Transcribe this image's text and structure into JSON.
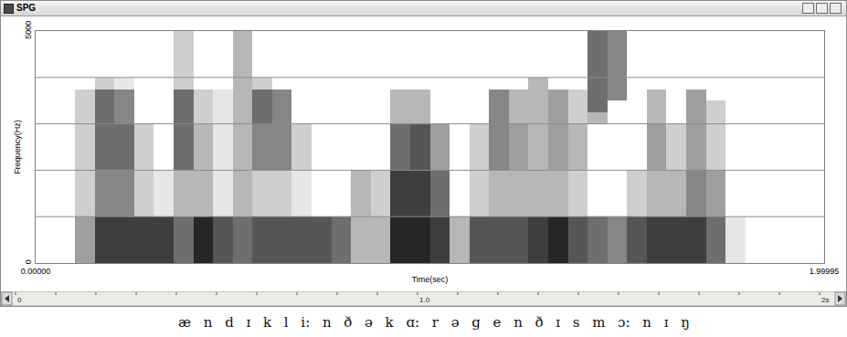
{
  "window": {
    "title": "SPG"
  },
  "chart_data": {
    "type": "heatmap",
    "x_label": "Time(sec)",
    "y_label": "Frequency(Hz)",
    "xlim": [
      0,
      1.99995
    ],
    "xticks": [
      {
        "value": 0,
        "label": "0.00000"
      },
      1.99995
    ],
    "ylim": [
      0,
      5000
    ],
    "yticks": [
      0,
      5000
    ],
    "grid": true,
    "grid_lines": [
      1000,
      2000,
      3000,
      4000
    ],
    "color": "#262626",
    "zlim": [
      0,
      9
    ],
    "x_bins": [
      0,
      0.05,
      0.1,
      0.15,
      0.2,
      0.25,
      0.3,
      0.35,
      0.4,
      0.45,
      0.5,
      0.55,
      0.6,
      0.65,
      0.7,
      0.75,
      0.8,
      0.85,
      0.9,
      0.95,
      1,
      1.05,
      1.1,
      1.15,
      1.2,
      1.25,
      1.3,
      1.35,
      1.4,
      1.45,
      1.5,
      1.55,
      1.6,
      1.65,
      1.7,
      1.75,
      1.8,
      1.85,
      1.9,
      1.95,
      2
    ],
    "y_bins": [
      0,
      250,
      500,
      750,
      1000,
      1250,
      1500,
      1750,
      2000,
      2250,
      2500,
      2750,
      3000,
      3250,
      3500,
      3750,
      4000,
      4250,
      4500,
      4750,
      5000
    ],
    "cells": [
      [
        0,
        0,
        4,
        8,
        8,
        8,
        8,
        6,
        9,
        7,
        6,
        7,
        7,
        7,
        7,
        6,
        3,
        3,
        9,
        9,
        8,
        3,
        7,
        7,
        7,
        8,
        9,
        7,
        6,
        5,
        7,
        8,
        8,
        8,
        6,
        1,
        0,
        0,
        0,
        0
      ],
      [
        0,
        0,
        4,
        8,
        8,
        8,
        8,
        6,
        9,
        7,
        6,
        7,
        7,
        7,
        7,
        6,
        3,
        3,
        9,
        9,
        8,
        3,
        7,
        7,
        7,
        8,
        9,
        7,
        6,
        5,
        7,
        8,
        8,
        8,
        6,
        1,
        0,
        0,
        0,
        0
      ],
      [
        0,
        0,
        4,
        8,
        8,
        8,
        8,
        6,
        9,
        7,
        6,
        7,
        7,
        7,
        7,
        6,
        3,
        3,
        9,
        9,
        8,
        3,
        7,
        7,
        7,
        8,
        9,
        7,
        6,
        5,
        7,
        8,
        8,
        8,
        6,
        1,
        0,
        0,
        0,
        0
      ],
      [
        0,
        0,
        4,
        8,
        8,
        8,
        8,
        6,
        9,
        7,
        6,
        7,
        7,
        7,
        7,
        6,
        3,
        3,
        9,
        9,
        8,
        3,
        7,
        7,
        7,
        8,
        9,
        7,
        6,
        5,
        7,
        8,
        8,
        8,
        6,
        1,
        0,
        0,
        0,
        0
      ],
      [
        0,
        0,
        2,
        5,
        5,
        2,
        1,
        3,
        3,
        1,
        3,
        2,
        2,
        1,
        0,
        0,
        3,
        2,
        8,
        8,
        6,
        0,
        2,
        3,
        3,
        3,
        3,
        2,
        0,
        0,
        2,
        3,
        3,
        5,
        4,
        0,
        0,
        0,
        0,
        0
      ],
      [
        0,
        0,
        2,
        5,
        5,
        2,
        1,
        3,
        3,
        1,
        3,
        2,
        2,
        1,
        0,
        0,
        3,
        2,
        8,
        8,
        6,
        0,
        2,
        3,
        3,
        3,
        3,
        2,
        0,
        0,
        2,
        3,
        3,
        5,
        4,
        0,
        0,
        0,
        0,
        0
      ],
      [
        0,
        0,
        2,
        5,
        5,
        2,
        1,
        3,
        3,
        1,
        3,
        2,
        2,
        1,
        0,
        0,
        3,
        2,
        8,
        8,
        6,
        0,
        2,
        3,
        3,
        3,
        3,
        2,
        0,
        0,
        2,
        3,
        3,
        5,
        4,
        0,
        0,
        0,
        0,
        0
      ],
      [
        0,
        0,
        2,
        5,
        5,
        2,
        1,
        3,
        3,
        1,
        3,
        2,
        2,
        1,
        0,
        0,
        3,
        2,
        8,
        8,
        6,
        0,
        2,
        3,
        3,
        3,
        3,
        2,
        0,
        0,
        2,
        3,
        3,
        5,
        4,
        0,
        0,
        0,
        0,
        0
      ],
      [
        0,
        0,
        2,
        6,
        6,
        2,
        0,
        6,
        3,
        1,
        3,
        5,
        5,
        2,
        0,
        0,
        0,
        0,
        6,
        7,
        4,
        0,
        2,
        5,
        4,
        3,
        4,
        3,
        0,
        0,
        0,
        4,
        2,
        4,
        2,
        0,
        0,
        0,
        0,
        0
      ],
      [
        0,
        0,
        2,
        6,
        6,
        2,
        0,
        6,
        3,
        1,
        3,
        5,
        5,
        2,
        0,
        0,
        0,
        0,
        6,
        7,
        4,
        0,
        2,
        5,
        4,
        3,
        4,
        3,
        0,
        0,
        0,
        4,
        2,
        4,
        2,
        0,
        0,
        0,
        0,
        0
      ],
      [
        0,
        0,
        2,
        6,
        6,
        2,
        0,
        6,
        3,
        1,
        3,
        5,
        5,
        2,
        0,
        0,
        0,
        0,
        6,
        7,
        4,
        0,
        2,
        5,
        4,
        3,
        4,
        3,
        0,
        0,
        0,
        4,
        2,
        4,
        2,
        0,
        0,
        0,
        0,
        0
      ],
      [
        0,
        0,
        2,
        6,
        6,
        2,
        0,
        6,
        3,
        1,
        3,
        5,
        5,
        2,
        0,
        0,
        0,
        0,
        6,
        7,
        4,
        0,
        2,
        5,
        4,
        3,
        4,
        3,
        0,
        0,
        0,
        4,
        2,
        4,
        2,
        0,
        0,
        0,
        0,
        0
      ],
      [
        0,
        0,
        2,
        6,
        5,
        0,
        0,
        6,
        2,
        1,
        3,
        6,
        5,
        0,
        0,
        0,
        0,
        0,
        3,
        3,
        0,
        0,
        0,
        5,
        3,
        3,
        4,
        2,
        3,
        0,
        0,
        3,
        0,
        4,
        2,
        0,
        0,
        0,
        0,
        0
      ],
      [
        0,
        0,
        2,
        6,
        5,
        0,
        0,
        6,
        2,
        1,
        3,
        6,
        5,
        0,
        0,
        0,
        0,
        0,
        3,
        3,
        0,
        0,
        0,
        5,
        3,
        3,
        4,
        2,
        6,
        0,
        0,
        3,
        0,
        4,
        2,
        0,
        0,
        0,
        0,
        0
      ],
      [
        0,
        0,
        2,
        6,
        5,
        0,
        0,
        6,
        2,
        1,
        3,
        6,
        5,
        0,
        0,
        0,
        0,
        0,
        3,
        3,
        0,
        0,
        0,
        5,
        3,
        3,
        4,
        2,
        6,
        5,
        0,
        3,
        0,
        4,
        0,
        0,
        0,
        0,
        0,
        0
      ],
      [
        0,
        0,
        0,
        2,
        1,
        0,
        0,
        2,
        0,
        0,
        3,
        2,
        0,
        0,
        0,
        0,
        0,
        0,
        0,
        0,
        0,
        0,
        0,
        0,
        0,
        3,
        0,
        0,
        6,
        5,
        0,
        0,
        0,
        0,
        0,
        0,
        0,
        0,
        0,
        0
      ],
      [
        0,
        0,
        0,
        0,
        0,
        0,
        0,
        2,
        0,
        0,
        3,
        0,
        0,
        0,
        0,
        0,
        0,
        0,
        0,
        0,
        0,
        0,
        0,
        0,
        0,
        0,
        0,
        0,
        6,
        5,
        0,
        0,
        0,
        0,
        0,
        0,
        0,
        0,
        0,
        0
      ],
      [
        0,
        0,
        0,
        0,
        0,
        0,
        0,
        2,
        0,
        0,
        3,
        0,
        0,
        0,
        0,
        0,
        0,
        0,
        0,
        0,
        0,
        0,
        0,
        0,
        0,
        0,
        0,
        0,
        6,
        5,
        0,
        0,
        0,
        0,
        0,
        0,
        0,
        0,
        0,
        0
      ],
      [
        0,
        0,
        0,
        0,
        0,
        0,
        0,
        2,
        0,
        0,
        3,
        0,
        0,
        0,
        0,
        0,
        0,
        0,
        0,
        0,
        0,
        0,
        0,
        0,
        0,
        0,
        0,
        0,
        6,
        5,
        0,
        0,
        0,
        0,
        0,
        0,
        0,
        0,
        0,
        0
      ],
      [
        0,
        0,
        0,
        0,
        0,
        0,
        0,
        2,
        0,
        0,
        3,
        0,
        0,
        0,
        0,
        0,
        0,
        0,
        0,
        0,
        0,
        0,
        0,
        0,
        0,
        0,
        0,
        0,
        6,
        5,
        0,
        0,
        0,
        0,
        0,
        0,
        0,
        0,
        0,
        0
      ]
    ]
  },
  "ruler": {
    "range": [
      0,
      2
    ],
    "ticks": [
      0,
      {
        "value": 1,
        "label": "1.0"
      },
      {
        "value": 2,
        "label": "2s"
      }
    ]
  },
  "transcription": [
    "æ",
    "n",
    "d",
    "ɪ",
    "k",
    "l",
    "i:",
    "n",
    "ð",
    "ə",
    "k",
    "ɑ:",
    "r",
    "ə",
    "g",
    "e",
    "n",
    "ð",
    "ɪ",
    "s",
    "m",
    "ɔ:",
    "n",
    "ɪ",
    "ŋ"
  ]
}
